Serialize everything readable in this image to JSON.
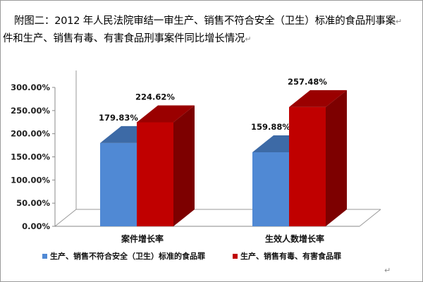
{
  "document": {
    "caption_line1": "附图二：2012 年人民法院审结一审生产、销售不符合安全（卫生）标准的食品刑事案",
    "caption_line2": "件和生产、销售有毒、有害食品刑事案件同比增长情况",
    "paragraph_mark": "↵"
  },
  "chart_data": {
    "type": "bar",
    "categories": [
      "案件增长率",
      "生效人数增长率"
    ],
    "series": [
      {
        "name": "生产、销售不符合安全（卫生）标准的食品罪",
        "values": [
          179.83,
          159.88
        ],
        "labels": [
          "179.83%",
          "159.88%"
        ],
        "color": "#5089d4",
        "top_color": "#3d6aa6",
        "side_color": "#34598c"
      },
      {
        "name": "生产、销售有毒、有害食品罪",
        "values": [
          224.62,
          257.48
        ],
        "labels": [
          "224.62%",
          "257.48%"
        ],
        "color": "#c00000",
        "top_color": "#9a0000",
        "side_color": "#7d0000"
      }
    ],
    "yticks": [
      "0.00%",
      "50.00%",
      "100.00%",
      "150.00%",
      "200.00%",
      "250.00%",
      "300.00%"
    ],
    "ylim": [
      0,
      300
    ],
    "grid": false,
    "legend_position": "bottom"
  }
}
